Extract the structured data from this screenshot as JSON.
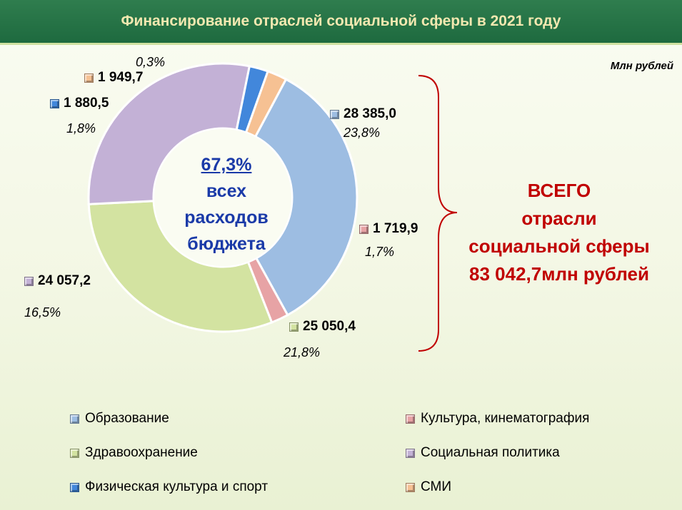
{
  "header": {
    "title": "Финансирование отраслей социальной сферы в 2021 году"
  },
  "unit_label": "Млн рублей",
  "center": {
    "share": "67,3%",
    "line1": "всех",
    "line2": "расходов",
    "line3": "бюджета"
  },
  "total": {
    "line1": "ВСЕГО",
    "line2": "отрасли",
    "line3": "социальной сферы",
    "line4": "83 042,7млн рублей"
  },
  "chart_data": {
    "type": "pie",
    "series": [
      {
        "name": "Образование",
        "value": 28385.0,
        "value_label": "28 385,0",
        "pct_label": "23,8%",
        "color": "#9dbde2"
      },
      {
        "name": "Культура, кинематография",
        "value": 1719.9,
        "value_label": "1 719,9",
        "pct_label": "1,7%",
        "color": "#e7a3a5"
      },
      {
        "name": "Здравоохранение",
        "value": 25050.4,
        "value_label": "25 050,4",
        "pct_label": "21,8%",
        "color": "#d3e3a1"
      },
      {
        "name": "Социальная политика",
        "value": 24057.2,
        "value_label": "24 057,2",
        "pct_label": "16,5%",
        "color": "#c3b1d6"
      },
      {
        "name": "Физическая культура и спорт",
        "value": 1880.5,
        "value_label": "1 880,5",
        "pct_label": "1,8%",
        "color": "#4287db"
      },
      {
        "name": "СМИ",
        "value": 1949.7,
        "value_label": "1 949,7",
        "pct_label": "0,3%",
        "color": "#f6c193"
      }
    ]
  }
}
